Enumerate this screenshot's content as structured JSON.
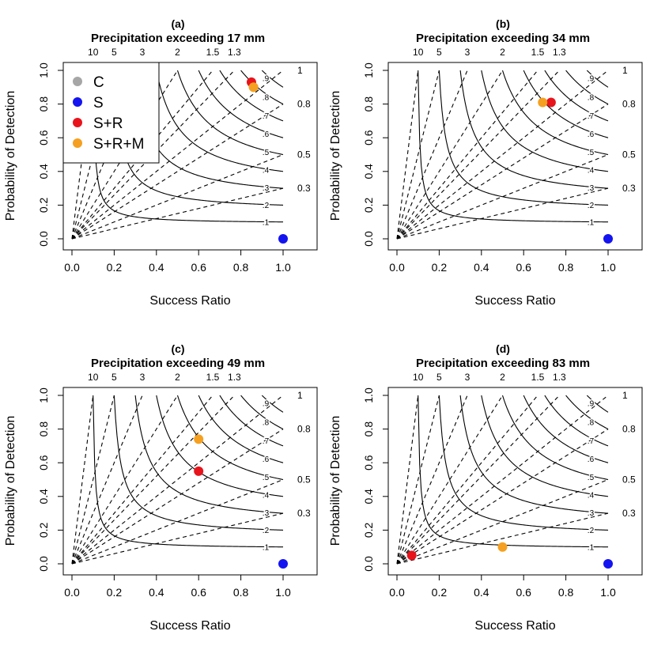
{
  "figure": {
    "colors": {
      "C": "#a6a6a6",
      "S": "#1414f0",
      "S+R": "#e8141c",
      "S+R+M": "#f5a020",
      "axis": "#000000"
    },
    "legend": {
      "entries": [
        "C",
        "S",
        "S+R",
        "S+R+M"
      ]
    }
  },
  "chart_data": [
    {
      "type": "scatter",
      "panel_label": "(a)",
      "title": "Precipitation exceeding 17 mm",
      "xlabel": "Success Ratio",
      "ylabel": "Probability of Detection",
      "xlim": [
        0,
        1
      ],
      "ylim": [
        0,
        1
      ],
      "x_ticks": [
        "0.0",
        "0.2",
        "0.4",
        "0.6",
        "0.8",
        "1.0"
      ],
      "y_ticks": [
        "0.0",
        "0.2",
        "0.4",
        "0.6",
        "0.8",
        "1.0"
      ],
      "bias_lines": [
        10,
        5,
        3,
        2,
        1.5,
        1.3,
        1,
        0.8,
        0.5,
        0.3
      ],
      "bias_top_labels": [
        "10",
        "5",
        "3",
        "2",
        "1.5",
        "1.3"
      ],
      "bias_right_labels": [
        "1",
        "0.8",
        "0.5",
        "0.3"
      ],
      "csi_contours": [
        0.1,
        0.2,
        0.3,
        0.4,
        0.5,
        0.6,
        0.7,
        0.8,
        0.9
      ],
      "csi_labels": [
        ".1",
        ".2",
        ".3",
        ".4",
        ".5",
        ".6",
        ".7",
        ".8",
        ".9"
      ],
      "show_legend": true,
      "series": [
        {
          "name": "C",
          "x": 0.86,
          "y": 0.9
        },
        {
          "name": "S",
          "x": 1.0,
          "y": 0.0
        },
        {
          "name": "S+R",
          "x": 0.85,
          "y": 0.93
        },
        {
          "name": "S+R+M",
          "x": 0.86,
          "y": 0.9
        }
      ]
    },
    {
      "type": "scatter",
      "panel_label": "(b)",
      "title": "Precipitation exceeding 34 mm",
      "xlabel": "Success Ratio",
      "ylabel": "Probability of Detection",
      "xlim": [
        0,
        1
      ],
      "ylim": [
        0,
        1
      ],
      "x_ticks": [
        "0.0",
        "0.2",
        "0.4",
        "0.6",
        "0.8",
        "1.0"
      ],
      "y_ticks": [
        "0.0",
        "0.2",
        "0.4",
        "0.6",
        "0.8",
        "1.0"
      ],
      "bias_lines": [
        10,
        5,
        3,
        2,
        1.5,
        1.3,
        1,
        0.8,
        0.5,
        0.3
      ],
      "bias_top_labels": [
        "10",
        "5",
        "3",
        "2",
        "1.5",
        "1.3"
      ],
      "bias_right_labels": [
        "1",
        "0.8",
        "0.5",
        "0.3"
      ],
      "csi_contours": [
        0.1,
        0.2,
        0.3,
        0.4,
        0.5,
        0.6,
        0.7,
        0.8,
        0.9
      ],
      "csi_labels": [
        ".1",
        ".2",
        ".3",
        ".4",
        ".5",
        ".6",
        ".7",
        ".8",
        ".9"
      ],
      "show_legend": false,
      "series": [
        {
          "name": "S",
          "x": 1.0,
          "y": 0.0
        },
        {
          "name": "S+R",
          "x": 0.73,
          "y": 0.81
        },
        {
          "name": "S+R+M",
          "x": 0.69,
          "y": 0.81
        }
      ]
    },
    {
      "type": "scatter",
      "panel_label": "(c)",
      "title": "Precipitation exceeding 49 mm",
      "xlabel": "Success Ratio",
      "ylabel": "Probability of Detection",
      "xlim": [
        0,
        1
      ],
      "ylim": [
        0,
        1
      ],
      "x_ticks": [
        "0.0",
        "0.2",
        "0.4",
        "0.6",
        "0.8",
        "1.0"
      ],
      "y_ticks": [
        "0.0",
        "0.2",
        "0.4",
        "0.6",
        "0.8",
        "1.0"
      ],
      "bias_lines": [
        10,
        5,
        3,
        2,
        1.5,
        1.3,
        1,
        0.8,
        0.5,
        0.3
      ],
      "bias_top_labels": [
        "10",
        "5",
        "3",
        "2",
        "1.5",
        "1.3"
      ],
      "bias_right_labels": [
        "1",
        "0.8",
        "0.5",
        "0.3"
      ],
      "csi_contours": [
        0.1,
        0.2,
        0.3,
        0.4,
        0.5,
        0.6,
        0.7,
        0.8,
        0.9
      ],
      "csi_labels": [
        ".1",
        ".2",
        ".3",
        ".4",
        ".5",
        ".6",
        ".7",
        ".8",
        ".9"
      ],
      "show_legend": false,
      "series": [
        {
          "name": "S",
          "x": 1.0,
          "y": 0.0
        },
        {
          "name": "S+R",
          "x": 0.6,
          "y": 0.55
        },
        {
          "name": "S+R+M",
          "x": 0.6,
          "y": 0.74
        }
      ]
    },
    {
      "type": "scatter",
      "panel_label": "(d)",
      "title": "Precipitation exceeding 83 mm",
      "xlabel": "Success Ratio",
      "ylabel": "Probability of Detection",
      "xlim": [
        0,
        1
      ],
      "ylim": [
        0,
        1
      ],
      "x_ticks": [
        "0.0",
        "0.2",
        "0.4",
        "0.6",
        "0.8",
        "1.0"
      ],
      "y_ticks": [
        "0.0",
        "0.2",
        "0.4",
        "0.6",
        "0.8",
        "1.0"
      ],
      "bias_lines": [
        10,
        5,
        3,
        2,
        1.5,
        1.3,
        1,
        0.8,
        0.5,
        0.3
      ],
      "bias_top_labels": [
        "10",
        "5",
        "3",
        "2",
        "1.5",
        "1.3"
      ],
      "bias_right_labels": [
        "1",
        "0.8",
        "0.5",
        "0.3"
      ],
      "csi_contours": [
        0.1,
        0.2,
        0.3,
        0.4,
        0.5,
        0.6,
        0.7,
        0.8,
        0.9
      ],
      "csi_labels": [
        ".1",
        ".2",
        ".3",
        ".4",
        ".5",
        ".6",
        ".7",
        ".8",
        ".9"
      ],
      "show_legend": false,
      "series": [
        {
          "name": "S",
          "x": 1.0,
          "y": 0.0
        },
        {
          "name": "S+R",
          "x": 0.07,
          "y": 0.05
        },
        {
          "name": "S+R+M",
          "x": 0.5,
          "y": 0.1
        }
      ]
    }
  ]
}
